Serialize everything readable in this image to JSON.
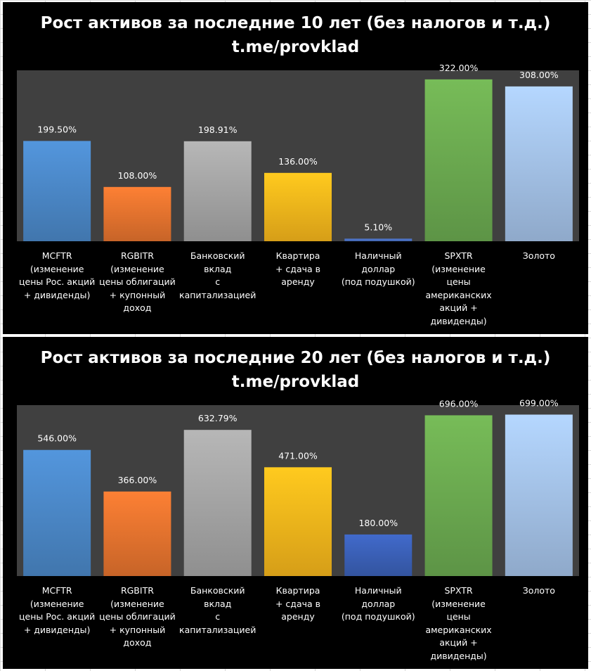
{
  "chart_data": [
    {
      "type": "bar",
      "title": "Рост активов за последние 10 лет (без налогов и т.д.)",
      "subtitle": "t.me/provklad",
      "categories": [
        "MCFTR\n(изменение\nцены Рос. акций\n+ дивиденды)",
        "RGBITR\n(изменение\nцены облигаций\n+ купонный\nдоход",
        "Банковский\nвклад\nс\nкапитализацией",
        "Квартира\n+ сдача в аренду",
        "Наличный\nдоллар\n(под подушкой)",
        "SPXTR\n(изменение\nцены\nамериканских\nакций +\nдивиденды)",
        "Золото"
      ],
      "values": [
        199.5,
        108.0,
        198.91,
        136.0,
        5.1,
        322.0,
        308.0
      ],
      "data_labels": [
        "199.50%",
        "108.00%",
        "198.91%",
        "136.00%",
        "5.10%",
        "322.00%",
        "308.00%"
      ],
      "ylim": [
        0,
        340
      ],
      "colors": [
        "#4a86c5",
        "#e2722e",
        "#a3a3a3",
        "#f3b41b",
        "#4a6fc0",
        "#6aa84f",
        "#a2c0e6"
      ],
      "xlabel": "",
      "ylabel": "",
      "grid": false,
      "legend": "none"
    },
    {
      "type": "bar",
      "title": "Рост активов за последние 20 лет (без налогов и т.д.)",
      "subtitle": "t.me/provklad",
      "categories": [
        "MCFTR\n(изменение\nцены Рос. акций\n+ дивиденды)",
        "RGBITR\n(изменение\nцены облигаций\n+ купонный\nдоход",
        "Банковский\nвклад\nс\nкапитализацией",
        "Квартира\n+ сдача в аренду",
        "Наличный\nдоллар\n(под подушкой)",
        "SPXTR\n(изменение\nцены\nамериканских\nакций +\nдивиденды)",
        "Золото"
      ],
      "values": [
        546.0,
        366.0,
        632.79,
        471.0,
        180.0,
        696.0,
        699.0
      ],
      "data_labels": [
        "546.00%",
        "366.00%",
        "632.79%",
        "471.00%",
        "180.00%",
        "696.00%",
        "699.00%"
      ],
      "ylim": [
        0,
        740
      ],
      "colors": [
        "#4a86c5",
        "#e2722e",
        "#a3a3a3",
        "#f3b41b",
        "#3a5fb5",
        "#6aa84f",
        "#a2c0e6"
      ],
      "xlabel": "",
      "ylabel": "",
      "grid": false,
      "legend": "none"
    }
  ]
}
